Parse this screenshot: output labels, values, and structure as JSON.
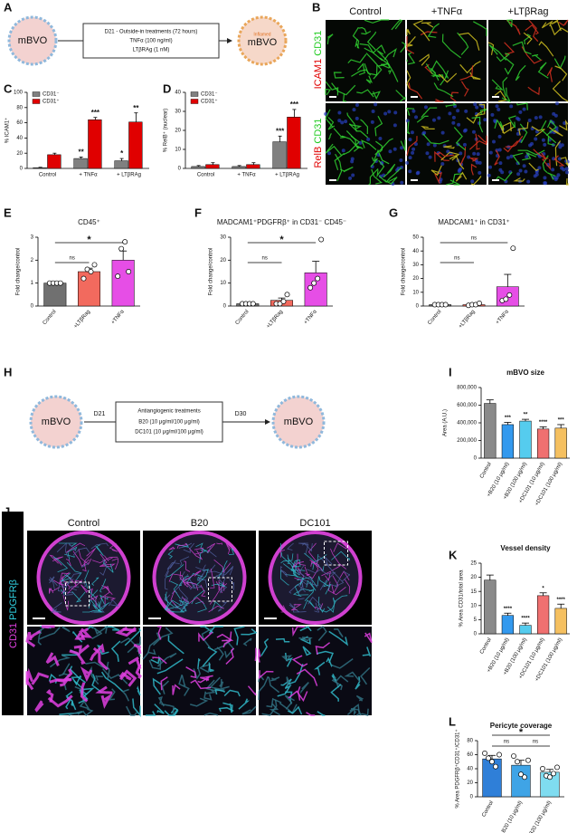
{
  "panel_letters": [
    "A",
    "B",
    "C",
    "D",
    "E",
    "F",
    "G",
    "H",
    "I",
    "J",
    "K",
    "L"
  ],
  "schematic_a": {
    "left": "mBVO",
    "line1": "D21 - Outside-in treatments (72 hours)",
    "line2": "TNFα (100 ng/ml)",
    "line3": "LTβRAg (1 nM)",
    "right_small": "Inflamed",
    "right": "mBVO"
  },
  "micrographs_b": {
    "columns": [
      "Control",
      "+TNFα",
      "+LTβRag"
    ],
    "rows": [
      {
        "stain1": "ICAM1",
        "stain2": "CD31"
      },
      {
        "stain1": "RelB",
        "stain2": "CD31"
      }
    ]
  },
  "schematic_h": {
    "left": "mBVO",
    "start": "D21",
    "line1": "Antiangiogenic treatments",
    "line2": "B20 (10 μg/ml/100 μg/ml)",
    "line3": "DC101 (10 μg/ml/100 μg/ml)",
    "end": "D30",
    "right": "mBVO"
  },
  "micrographs_j": {
    "columns": [
      "Control",
      "B20",
      "DC101"
    ],
    "stain1": "CD31",
    "stain2": "PDGFRβ"
  },
  "chart_data": [
    {
      "type": "bar",
      "ylabel": "% ICAM1⁺",
      "categories": [
        "Control",
        "+ TNFα",
        "+ LTβRAg"
      ],
      "ylim": [
        0,
        100
      ],
      "yticks": [
        0,
        20,
        40,
        60,
        80,
        100
      ],
      "legend": "upper left",
      "series": [
        {
          "name": "CD31⁻",
          "color": "#808080",
          "values": [
            1,
            13,
            10
          ],
          "errors": [
            0.5,
            2,
            3
          ],
          "stars": [
            null,
            "**",
            "*"
          ]
        },
        {
          "name": "CD31⁺",
          "color": "#e00000",
          "values": [
            18,
            64,
            61
          ],
          "errors": [
            2,
            3,
            12
          ],
          "stars": [
            null,
            "***",
            "**"
          ]
        }
      ]
    },
    {
      "type": "bar",
      "ylabel": "% RelB⁺ (nuclear)",
      "categories": [
        "Control",
        "+ TNFα",
        "+ LTβRAg"
      ],
      "ylim": [
        0,
        40
      ],
      "yticks": [
        0,
        10,
        20,
        30,
        40
      ],
      "legend": "upper left",
      "series": [
        {
          "name": "CD31⁻",
          "color": "#808080",
          "values": [
            1,
            1,
            14
          ],
          "errors": [
            0.5,
            0.5,
            3
          ],
          "stars": [
            null,
            null,
            "***"
          ]
        },
        {
          "name": "CD31⁺",
          "color": "#e00000",
          "values": [
            2,
            2,
            27
          ],
          "errors": [
            1,
            1,
            4
          ],
          "stars": [
            null,
            null,
            "***"
          ]
        }
      ]
    },
    {
      "type": "bar",
      "title": "CD45⁺",
      "ylabel": "Fold change/control",
      "categories": [
        "Control",
        "+LTβRag",
        "+TNFα"
      ],
      "ylim": [
        0,
        3
      ],
      "yticks": [
        0,
        1,
        2,
        3
      ],
      "values": [
        1,
        1.5,
        2
      ],
      "errors": [
        0,
        0.15,
        0.4
      ],
      "colors": [
        "#707070",
        "#f26a5e",
        "#e64ee6"
      ],
      "points": [
        [
          1,
          1,
          1,
          1
        ],
        [
          1.2,
          1.6,
          1.5,
          1.8
        ],
        [
          1.3,
          2.5,
          2.8,
          1.5
        ]
      ],
      "brackets": [
        {
          "from": "Control",
          "to": "+LTβRag",
          "label": "ns"
        },
        {
          "from": "Control",
          "to": "+TNFα",
          "label": "*"
        }
      ]
    },
    {
      "type": "bar",
      "title": "MADCAM1⁺PDGFRβ⁺ in CD31⁻ CD45⁻",
      "ylabel": "Fold change/control",
      "categories": [
        "Control",
        "+LTβRag",
        "+TNFα"
      ],
      "ylim": [
        0,
        30
      ],
      "yticks": [
        0,
        10,
        20,
        30
      ],
      "values": [
        1,
        2.5,
        14.5
      ],
      "errors": [
        0,
        1,
        5
      ],
      "colors": [
        "#707070",
        "#f26a5e",
        "#e64ee6"
      ],
      "points": [
        [
          1,
          1,
          1,
          1
        ],
        [
          1,
          1,
          2,
          5
        ],
        [
          8,
          10,
          12,
          29
        ]
      ],
      "brackets": [
        {
          "from": "Control",
          "to": "+LTβRag",
          "label": "ns"
        },
        {
          "from": "Control",
          "to": "+TNFα",
          "label": "*"
        }
      ]
    },
    {
      "type": "bar",
      "title": "MADCAM1⁺ in CD31⁺",
      "ylabel": "Fold change/control",
      "categories": [
        "Control",
        "+LTβRag",
        "+TNFα"
      ],
      "ylim": [
        0,
        50
      ],
      "yticks": [
        0,
        10,
        20,
        30,
        40,
        50
      ],
      "values": [
        1,
        1,
        14
      ],
      "errors": [
        0,
        0.5,
        9
      ],
      "colors": [
        "#707070",
        "#f26a5e",
        "#e64ee6"
      ],
      "points": [
        [
          1,
          1,
          1,
          1
        ],
        [
          0.5,
          1,
          1,
          2
        ],
        [
          4,
          5,
          8,
          42
        ]
      ],
      "brackets": [
        {
          "from": "Control",
          "to": "+LTβRag",
          "label": "ns"
        },
        {
          "from": "Control",
          "to": "+TNFα",
          "label": "ns"
        }
      ]
    },
    {
      "type": "bar",
      "title": "mBVO size",
      "ylabel": "Area (A.U.)",
      "categories": [
        "Control",
        "+B20 (10 μg/ml)",
        "+B20 (100 μg/ml)",
        "+DC101 (10 μg/ml)",
        "+DC101 (100 μg/ml)"
      ],
      "ylim": [
        0,
        800000
      ],
      "yticks": [
        0,
        {
          "value": 200000,
          "label": "200,000"
        },
        {
          "value": 400000,
          "label": "400,000"
        },
        {
          "value": 600000,
          "label": "600,000"
        },
        {
          "value": 800000,
          "label": "800,000"
        }
      ],
      "values": [
        620000,
        380000,
        420000,
        330000,
        340000
      ],
      "errors": [
        40000,
        25000,
        20000,
        25000,
        40000
      ],
      "colors": [
        "#8a8a8a",
        "#3399ee",
        "#55ccee",
        "#f07070",
        "#f5c060"
      ],
      "stars": [
        null,
        "***",
        "**",
        "****",
        "***"
      ]
    },
    {
      "type": "bar",
      "title": "Vessel density",
      "ylabel": "% Area CD31/total area",
      "categories": [
        "Control",
        "+B20 (10 μg/ml)",
        "+B20 (100 μg/ml)",
        "+DC101 (10 μg/ml)",
        "+DC101 (100 μg/ml)"
      ],
      "ylim": [
        0,
        25
      ],
      "yticks": [
        0,
        5,
        10,
        15,
        20,
        25
      ],
      "values": [
        19,
        6.5,
        3,
        13.5,
        9
      ],
      "errors": [
        1.8,
        0.8,
        0.8,
        1,
        1.5
      ],
      "colors": [
        "#8a8a8a",
        "#3399ee",
        "#55ccee",
        "#f07070",
        "#f5c060"
      ],
      "stars": [
        null,
        "****",
        "****",
        "*",
        "****"
      ]
    },
    {
      "type": "bar",
      "title": "Pericyte coverage",
      "ylabel": "% Area PDGFRβ⁺CD31⁺/CD31⁺",
      "categories": [
        "Control",
        "+ B20 (10 μg/ml)",
        "+ B20 (100 μg/ml)"
      ],
      "ylim": [
        0,
        80
      ],
      "yticks": [
        0,
        20,
        40,
        60,
        80
      ],
      "values": [
        54,
        45,
        35
      ],
      "errors": [
        5,
        7,
        4
      ],
      "colors": [
        "#2f7fd8",
        "#3fa4e6",
        "#7fdcf0"
      ],
      "points": [
        [
          62,
          55,
          50,
          43,
          60
        ],
        [
          58,
          50,
          32,
          28,
          52
        ],
        [
          40,
          30,
          28,
          33,
          42
        ]
      ],
      "brackets": [
        {
          "from": "Control",
          "to": "+ B20 (10 μg/ml)",
          "label": "ns"
        },
        {
          "from": "+ B20 (10 μg/ml)",
          "to": "+ B20 (100 μg/ml)",
          "label": "ns"
        },
        {
          "from": "Control",
          "to": "+ B20 (100 μg/ml)",
          "label": "*"
        }
      ]
    }
  ]
}
